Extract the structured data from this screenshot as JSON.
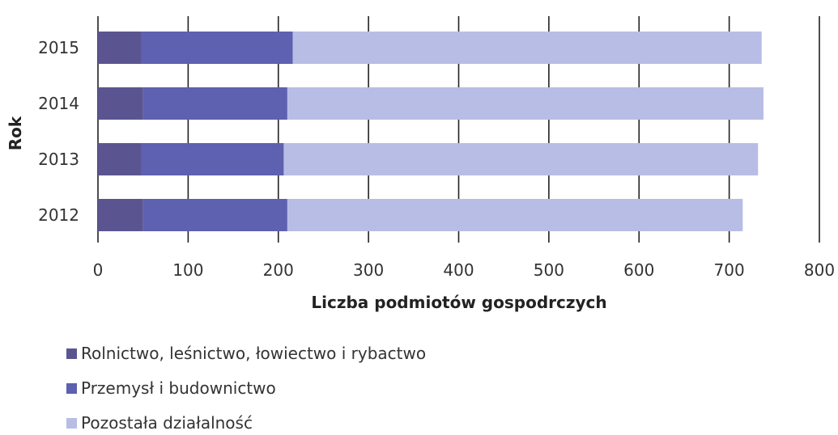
{
  "chart_data": {
    "type": "bar",
    "orientation": "horizontal",
    "stacked": true,
    "categories": [
      "2012",
      "2013",
      "2014",
      "2015"
    ],
    "series": [
      {
        "name": "Rolnictwo, leśnictwo, łowiectwo i rybactwo",
        "values": [
          50,
          48,
          50,
          48
        ],
        "color": "#5a5591"
      },
      {
        "name": "Przemysł i budownictwo",
        "values": [
          160,
          158,
          160,
          168
        ],
        "color": "#5e60b0"
      },
      {
        "name": "Pozostała działalność",
        "values": [
          505,
          526,
          528,
          520
        ],
        "color": "#b8bde6"
      }
    ],
    "xlabel": "Liczba podmiotów gospodrczych",
    "ylabel": "Rok",
    "xlim": [
      0,
      800
    ],
    "xticks": [
      "0",
      "100",
      "200",
      "300",
      "400",
      "500",
      "600",
      "700",
      "800"
    ],
    "grid": "vertical",
    "legend_position": "bottom"
  }
}
